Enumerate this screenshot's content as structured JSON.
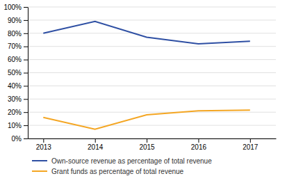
{
  "chart_data": {
    "type": "line",
    "x": [
      2013,
      2014,
      2015,
      2016,
      2017
    ],
    "series": [
      {
        "name": "Own-source revenue as percentage of total revenue",
        "color": "#2E4FA3",
        "values": [
          0.8,
          0.89,
          0.77,
          0.72,
          0.74
        ]
      },
      {
        "name": "Grant funds as percentage of total revenue",
        "color": "#F4A623",
        "values": [
          0.16,
          0.07,
          0.18,
          0.21,
          0.215
        ]
      }
    ],
    "xlim": [
      2012.7,
      2017.5
    ],
    "xticks": [
      2013,
      2014,
      2015,
      2016,
      2017
    ],
    "ylim": [
      0,
      1.0
    ],
    "yticks": [
      {
        "value": 0.0,
        "label": "0%"
      },
      {
        "value": 0.1,
        "label": "10%"
      },
      {
        "value": 0.2,
        "label": "20%"
      },
      {
        "value": 0.3,
        "label": "30%"
      },
      {
        "value": 0.4,
        "label": "40%"
      },
      {
        "value": 0.5,
        "label": "50%"
      },
      {
        "value": 0.6,
        "label": "60%"
      },
      {
        "value": 0.7,
        "label": "70%"
      },
      {
        "value": 0.8,
        "label": "80%"
      },
      {
        "value": 0.9,
        "label": "90%"
      },
      {
        "value": 1.0,
        "label": "100%"
      }
    ],
    "grid": true,
    "legend": "bottom"
  }
}
